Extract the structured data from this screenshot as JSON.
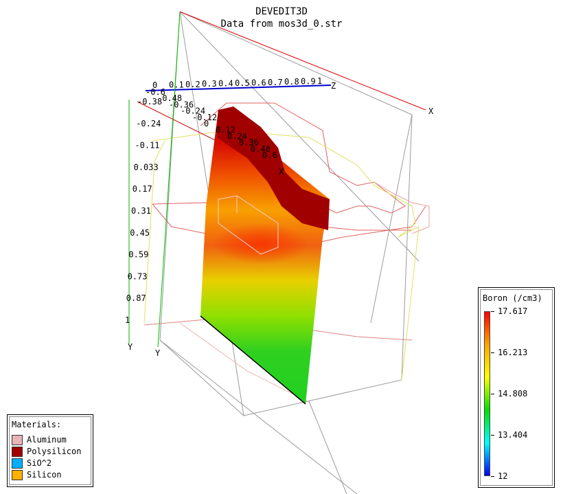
{
  "title": "DEVEDIT3D",
  "subtitle": "Data from mos3d_0.str",
  "chart_data": {
    "type": "heatmap",
    "title": "DEVEDIT3D",
    "subtitle": "Data from mos3d_0.str",
    "quantity": "Boron (/cm3)",
    "scale": "log10",
    "colorbar": {
      "label": "Boron (/cm3)",
      "min": 12,
      "max": 17.617,
      "ticks": [
        "17.617",
        "16.213",
        "14.808",
        "13.404",
        "12"
      ],
      "colors": [
        "#ff0000",
        "#ffa500",
        "#ffff00",
        "#00e000",
        "#00ffff",
        "#0000ff"
      ]
    },
    "axes": {
      "z": {
        "name": "Z",
        "ticks": [
          "0",
          "0.1",
          "0.2",
          "0.3",
          "0.4",
          "0.5",
          "0.6",
          "0.7",
          "0.8",
          "0.9",
          "1"
        ]
      },
      "x": {
        "name": "X",
        "ticks": [
          "-0.6",
          "-0.48",
          "-0.36",
          "-0.24",
          "-0.12",
          "0",
          "0.12",
          "0.24",
          "0.36",
          "0.48",
          "0.6"
        ]
      },
      "y": {
        "name": "Y",
        "ticks": [
          "-0.38",
          "-0.24",
          "-0.11",
          "0.033",
          "0.17",
          "0.31",
          "0.45",
          "0.59",
          "0.73",
          "0.87",
          "1"
        ]
      }
    }
  },
  "materials": {
    "header": "Materials:",
    "items": [
      {
        "name": "Aluminum",
        "color": "#e8b4b8"
      },
      {
        "name": "Polysilicon",
        "color": "#a00000"
      },
      {
        "name": "SiO^2",
        "color": "#00b0ff"
      },
      {
        "name": "Silicon",
        "color": "#ffb000"
      }
    ]
  }
}
